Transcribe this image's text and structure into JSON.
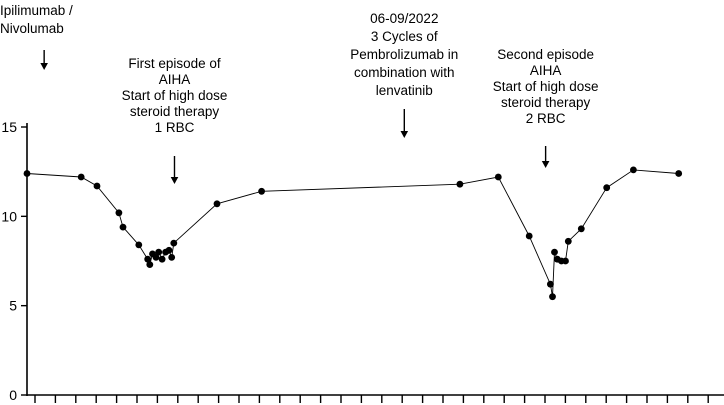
{
  "chart_data": {
    "type": "line",
    "title": "",
    "xlabel": "",
    "ylabel": "",
    "ylim": [
      0,
      15
    ],
    "yticks": [
      0,
      5,
      10,
      15
    ],
    "grid": false,
    "series": [
      {
        "name": "",
        "color": "#000000",
        "points": [
          {
            "x": 0.0,
            "y": 12.4
          },
          {
            "x": 7.9,
            "y": 12.2
          },
          {
            "x": 10.2,
            "y": 11.7
          },
          {
            "x": 13.4,
            "y": 10.2
          },
          {
            "x": 14.0,
            "y": 9.4
          },
          {
            "x": 16.3,
            "y": 8.4
          },
          {
            "x": 17.6,
            "y": 7.6
          },
          {
            "x": 17.9,
            "y": 7.3
          },
          {
            "x": 18.3,
            "y": 7.9
          },
          {
            "x": 18.8,
            "y": 7.7
          },
          {
            "x": 19.2,
            "y": 8.0
          },
          {
            "x": 19.7,
            "y": 7.6
          },
          {
            "x": 20.2,
            "y": 8.0
          },
          {
            "x": 20.7,
            "y": 8.1
          },
          {
            "x": 21.1,
            "y": 7.7
          },
          {
            "x": 21.4,
            "y": 8.5
          },
          {
            "x": 27.7,
            "y": 10.7
          },
          {
            "x": 34.2,
            "y": 11.4
          },
          {
            "x": 63.1,
            "y": 11.8
          },
          {
            "x": 68.7,
            "y": 12.2
          },
          {
            "x": 73.2,
            "y": 8.9
          },
          {
            "x": 76.3,
            "y": 6.2
          },
          {
            "x": 76.6,
            "y": 5.5
          },
          {
            "x": 76.9,
            "y": 8.0
          },
          {
            "x": 77.3,
            "y": 7.6
          },
          {
            "x": 77.9,
            "y": 7.5
          },
          {
            "x": 78.5,
            "y": 7.5
          },
          {
            "x": 78.9,
            "y": 8.6
          },
          {
            "x": 80.8,
            "y": 9.3
          },
          {
            "x": 84.5,
            "y": 11.6
          },
          {
            "x": 88.4,
            "y": 12.6
          },
          {
            "x": 95.0,
            "y": 12.4
          }
        ]
      }
    ],
    "annotations": [
      {
        "id": "ipi",
        "lines": [
          "Ipilimumab  /",
          "Nivolumab"
        ],
        "x": 2.5
      },
      {
        "id": "aiha1",
        "lines": [
          "First episode of",
          "AIHA",
          "Start of high dose",
          "steroid therapy",
          "1 RBC"
        ],
        "x": 21.5
      },
      {
        "id": "pembro",
        "lines": [
          "06-09/2022",
          "3 Cycles of",
          "Pembrolizumab  in",
          "combination with",
          "lenvatinib"
        ],
        "x": 55.0
      },
      {
        "id": "aiha2",
        "lines": [
          "Second episode",
          "AIHA",
          "Start of high dose",
          "steroid therapy",
          "2 RBC"
        ],
        "x": 75.6
      }
    ]
  }
}
